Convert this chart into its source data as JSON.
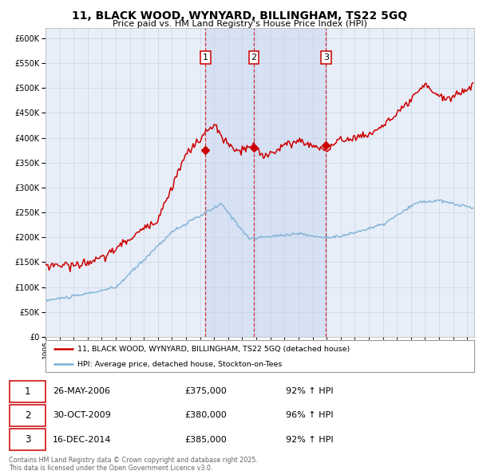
{
  "title": "11, BLACK WOOD, WYNYARD, BILLINGHAM, TS22 5GQ",
  "subtitle": "Price paid vs. HM Land Registry's House Price Index (HPI)",
  "legend_line1": "11, BLACK WOOD, WYNYARD, BILLINGHAM, TS22 5GQ (detached house)",
  "legend_line2": "HPI: Average price, detached house, Stockton-on-Tees",
  "transactions": [
    {
      "num": 1,
      "date": "26-MAY-2006",
      "price": 375000,
      "pct": "92%",
      "dir": "↑"
    },
    {
      "num": 2,
      "date": "30-OCT-2009",
      "price": 380000,
      "pct": "96%",
      "dir": "↑"
    },
    {
      "num": 3,
      "date": "16-DEC-2014",
      "price": 385000,
      "pct": "92%",
      "dir": "↑"
    }
  ],
  "transaction_dates_decimal": [
    2006.38,
    2009.83,
    2014.96
  ],
  "footnote1": "Contains HM Land Registry data © Crown copyright and database right 2025.",
  "footnote2": "This data is licensed under the Open Government Licence v3.0.",
  "red_color": "#cc0000",
  "blue_color": "#7bafd4",
  "plot_bg": "#e8eef8",
  "grid_color": "#c8d4e8",
  "vline_color": "#cc0000",
  "ylim_max": 620000,
  "ylim_min": 0,
  "start_year": 1995,
  "end_year": 2025
}
